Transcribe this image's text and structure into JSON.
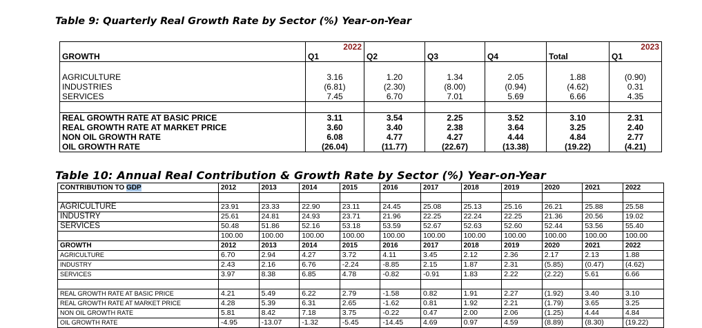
{
  "table9": {
    "title": "Table 9:  Quarterly Real Growth Rate by Sector (%) Year-on-Year",
    "year_2022": "2022",
    "year_2023": "2023",
    "header": [
      "GROWTH",
      "Q1",
      "Q2",
      "Q3",
      "Q4",
      "Total",
      "Q1"
    ],
    "sector_rows": [
      [
        "AGRICULTURE",
        "3.16",
        "1.20",
        "1.34",
        "2.05",
        "1.88",
        "(0.90)"
      ],
      [
        "INDUSTRIES",
        "(6.81)",
        "(2.30)",
        "(8.00)",
        "(0.94)",
        "(4.62)",
        "0.31"
      ],
      [
        "SERVICES",
        "7.45",
        "6.70",
        "7.01",
        "5.69",
        "6.66",
        "4.35"
      ]
    ],
    "rate_rows": [
      [
        "REAL GROWTH RATE AT BASIC PRICE",
        "3.11",
        "3.54",
        "2.25",
        "3.52",
        "3.10",
        "2.31"
      ],
      [
        "REAL GROWTH RATE AT MARKET PRICE",
        "3.60",
        "3.40",
        "2.38",
        "3.64",
        "3.25",
        "2.40"
      ],
      [
        "NON OIL GROWTH RATE",
        "6.08",
        "4.77",
        "4.27",
        "4.44",
        "4.84",
        "2.77"
      ],
      [
        "OIL GROWTH RATE",
        "(26.04)",
        "(11.77)",
        "(22.67)",
        "(13.38)",
        "(19.22)",
        "(4.21)"
      ]
    ]
  },
  "table10": {
    "title": "Table 10:  Annual Real Contribution & Growth Rate by Sector (%) Year-on-Year",
    "contribution_label_prefix": "CONTRIBUTION TO ",
    "contribution_label_highlight": "GDP",
    "years": [
      "2012",
      "2013",
      "2014",
      "2015",
      "2016",
      "2017",
      "2018",
      "2019",
      "2020",
      "2021",
      "2022"
    ],
    "contribution_rows": [
      [
        "AGRICULTURE",
        "23.91",
        "23.33",
        "22.90",
        "23.11",
        "24.45",
        "25.08",
        "25.13",
        "25.16",
        "26.21",
        "25.88",
        "25.58"
      ],
      [
        "INDUSTRY",
        "25.61",
        "24.81",
        "24.93",
        "23.71",
        "21.96",
        "22.25",
        "22.24",
        "22.25",
        "21.36",
        "20.56",
        "19.02"
      ],
      [
        "SERVICES",
        "50.48",
        "51.86",
        "52.16",
        "53.18",
        "53.59",
        "52.67",
        "52.63",
        "52.60",
        "52.44",
        "53.56",
        "55.40"
      ],
      [
        "",
        "100.00",
        "100.00",
        "100.00",
        "100.00",
        "100.00",
        "100.00",
        "100.00",
        "100.00",
        "100.00",
        "100.00",
        "100.00"
      ]
    ],
    "growth_label": "GROWTH",
    "growth_rows": [
      [
        "AGRICULTURE",
        "6.70",
        "2.94",
        "4.27",
        "3.72",
        "4.11",
        "3.45",
        "2.12",
        "2.36",
        "2.17",
        "2.13",
        "1.88"
      ],
      [
        "INDUSTRY",
        "2.43",
        "2.16",
        "6.76",
        "-2.24",
        "-8.85",
        "2.15",
        "1.87",
        "2.31",
        "(5.85)",
        "(0.47)",
        "(4.62)"
      ],
      [
        "SERVICES",
        "3.97",
        "8.38",
        "6.85",
        "4.78",
        "-0.82",
        "-0.91",
        "1.83",
        "2.22",
        "(2.22)",
        "5.61",
        "6.66"
      ]
    ],
    "rate_rows": [
      [
        "REAL GROWTH RATE AT BASIC PRICE",
        "4.21",
        "5.49",
        "6.22",
        "2.79",
        "-1.58",
        "0.82",
        "1.91",
        "2.27",
        "(1.92)",
        "3.40",
        "3.10"
      ],
      [
        "REAL GROWTH RATE AT MARKET PRICE",
        "4.28",
        "5.39",
        "6.31",
        "2.65",
        "-1.62",
        "0.81",
        "1.92",
        "2.21",
        "(1.79)",
        "3.65",
        "3.25"
      ],
      [
        "NON OIL GROWTH RATE",
        "5.81",
        "8.42",
        "7.18",
        "3.75",
        "-0.22",
        "0.47",
        "2.00",
        "2.06",
        "(1.25)",
        "4.44",
        "4.84"
      ],
      [
        "OIL GROWTH RATE",
        "-4.95",
        "-13.07",
        "-1.32",
        "-5.45",
        "-14.45",
        "4.69",
        "0.97",
        "4.59",
        "(8.89)",
        "(8.30)",
        "(19.22)"
      ]
    ]
  }
}
